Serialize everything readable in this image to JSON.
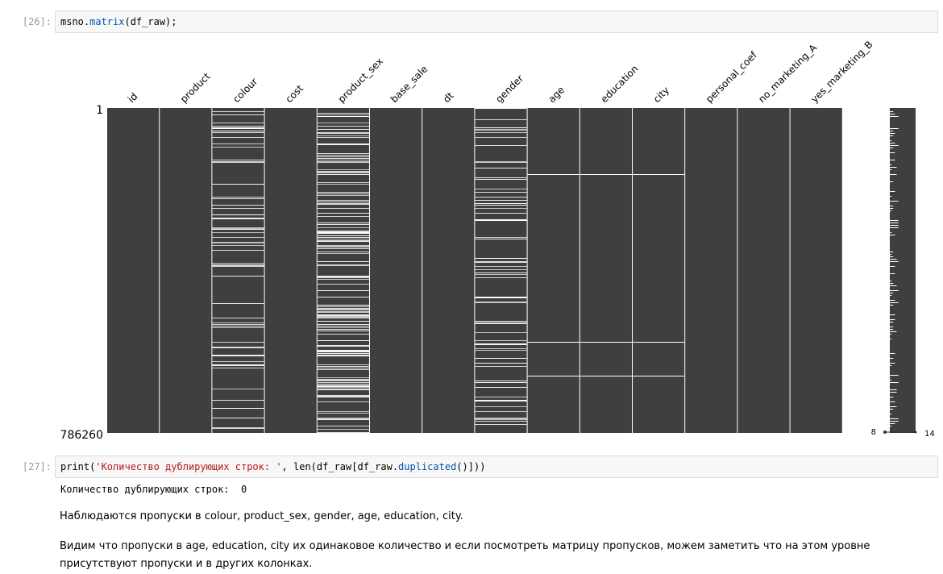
{
  "cells": [
    {
      "prompt": "[26]:",
      "code": {
        "obj": "msno.",
        "fn": "matrix",
        "rest": "(df_raw);"
      }
    },
    {
      "prompt": "[27]:",
      "code": {
        "pre": "print(",
        "str": "'Количество дублирующих строк: '",
        "mid": ", len(df_raw[df_raw.",
        "fn": "duplicated",
        "post": "()]))"
      },
      "output": "Количество дублирующих строк:  0"
    }
  ],
  "chart_data": {
    "type": "heatmap",
    "title": "",
    "columns": [
      "id",
      "product",
      "colour",
      "cost",
      "product_sex",
      "base_sale",
      "dt",
      "gender",
      "age",
      "education",
      "city",
      "personal_coef",
      "no_marketing_A",
      "yes_marketing_B"
    ],
    "y_tick_labels": [
      "1",
      "786260"
    ],
    "missing_pattern": [
      "none",
      "none",
      "frequent",
      "none",
      "very frequent",
      "none",
      "none",
      "frequent",
      "few",
      "few",
      "few",
      "none",
      "none",
      "none"
    ],
    "sparkline": {
      "min_label": "8",
      "max_label": "14",
      "min_value": 8,
      "max_value": 14
    },
    "colors": {
      "present": "#3f3f3f",
      "missing": "#ffffff"
    }
  },
  "markdown": [
    "Наблюдаются пропуски в colour, product_sex, gender, age, education, city.",
    "Видим что пропуски в age, education, city их одинаковое количество и если посмотреть матрицу пропусков, можем заметить что на этом уровне присутствуют пропуски и в других колонках."
  ]
}
